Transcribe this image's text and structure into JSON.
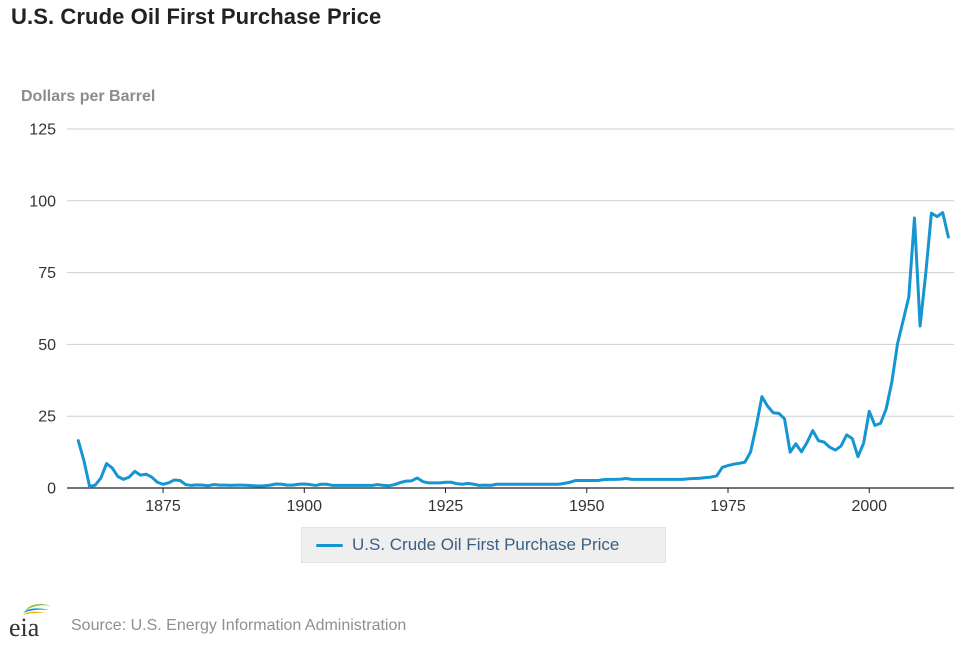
{
  "colors": {
    "series": "#1596d2",
    "grid": "#cfcfcf",
    "axis": "#222222",
    "legend_bg": "#efefef"
  },
  "logo": {
    "text": "eia",
    "icon": "eia-logo-icon"
  },
  "footer": {
    "source": "Source: U.S. Energy Information Administration"
  },
  "chart_data": {
    "type": "line",
    "title": "U.S. Crude Oil First Purchase Price",
    "ylabel": "Dollars per Barrel",
    "xlabel": "",
    "xlim": [
      1858,
      2015
    ],
    "ylim": [
      0,
      125
    ],
    "x_ticks": [
      1875,
      1900,
      1925,
      1950,
      1975,
      2000
    ],
    "y_ticks": [
      0,
      25,
      50,
      75,
      100,
      125
    ],
    "grid": "horizontal",
    "legend_position": "bottom",
    "series": [
      {
        "name": "U.S. Crude Oil First Purchase Price",
        "x": [
          1860,
          1861,
          1862,
          1863,
          1864,
          1865,
          1866,
          1867,
          1868,
          1869,
          1870,
          1871,
          1872,
          1873,
          1874,
          1875,
          1876,
          1877,
          1878,
          1879,
          1880,
          1881,
          1882,
          1883,
          1884,
          1885,
          1886,
          1887,
          1888,
          1889,
          1890,
          1891,
          1892,
          1893,
          1894,
          1895,
          1896,
          1897,
          1898,
          1899,
          1900,
          1901,
          1902,
          1903,
          1904,
          1905,
          1906,
          1907,
          1908,
          1909,
          1910,
          1911,
          1912,
          1913,
          1914,
          1915,
          1916,
          1917,
          1918,
          1919,
          1920,
          1921,
          1922,
          1923,
          1924,
          1925,
          1926,
          1927,
          1928,
          1929,
          1930,
          1931,
          1932,
          1933,
          1934,
          1935,
          1936,
          1937,
          1938,
          1939,
          1940,
          1941,
          1942,
          1943,
          1944,
          1945,
          1946,
          1947,
          1948,
          1949,
          1950,
          1951,
          1952,
          1953,
          1954,
          1955,
          1956,
          1957,
          1958,
          1959,
          1960,
          1961,
          1962,
          1963,
          1964,
          1965,
          1966,
          1967,
          1968,
          1969,
          1970,
          1971,
          1972,
          1973,
          1974,
          1975,
          1976,
          1977,
          1978,
          1979,
          1980,
          1981,
          1982,
          1983,
          1984,
          1985,
          1986,
          1987,
          1988,
          1989,
          1990,
          1991,
          1992,
          1993,
          1994,
          1995,
          1996,
          1997,
          1998,
          1999,
          2000,
          2001,
          2002,
          2003,
          2004,
          2005,
          2006,
          2007,
          2008,
          2009,
          2010,
          2011,
          2012,
          2013,
          2014
        ],
        "y": [
          16.5,
          9.5,
          0.5,
          1.0,
          3.5,
          8.5,
          7.0,
          4.0,
          3.0,
          3.8,
          5.8,
          4.5,
          4.8,
          3.8,
          2.0,
          1.3,
          1.8,
          2.8,
          2.6,
          1.2,
          0.9,
          1.1,
          1.0,
          0.8,
          1.2,
          1.0,
          1.0,
          0.9,
          1.0,
          1.0,
          0.9,
          0.8,
          0.7,
          0.8,
          1.0,
          1.4,
          1.3,
          1.0,
          1.0,
          1.3,
          1.4,
          1.2,
          0.9,
          1.3,
          1.3,
          0.9,
          0.9,
          0.9,
          0.9,
          0.9,
          0.9,
          0.9,
          0.9,
          1.2,
          0.9,
          0.8,
          1.2,
          1.9,
          2.4,
          2.5,
          3.5,
          2.2,
          1.8,
          1.8,
          1.8,
          2.0,
          2.0,
          1.5,
          1.3,
          1.6,
          1.3,
          0.9,
          1.0,
          0.9,
          1.3,
          1.3,
          1.3,
          1.3,
          1.3,
          1.3,
          1.3,
          1.3,
          1.3,
          1.3,
          1.3,
          1.3,
          1.6,
          2.0,
          2.6,
          2.6,
          2.6,
          2.6,
          2.6,
          2.9,
          3.0,
          3.0,
          3.1,
          3.3,
          3.0,
          3.0,
          3.0,
          3.0,
          3.0,
          3.0,
          3.0,
          3.0,
          3.0,
          3.0,
          3.2,
          3.3,
          3.4,
          3.6,
          3.8,
          4.2,
          7.2,
          7.8,
          8.3,
          8.6,
          9.0,
          12.6,
          21.6,
          31.8,
          28.5,
          26.2,
          26.0,
          24.1,
          12.5,
          15.4,
          12.6,
          15.9,
          20.0,
          16.5,
          16.0,
          14.2,
          13.2,
          14.6,
          18.5,
          17.2,
          10.9,
          15.6,
          26.7,
          21.8,
          22.5,
          27.6,
          36.9,
          50.2,
          58.3,
          66.5,
          94.0,
          56.4,
          74.7,
          95.7,
          94.5,
          95.9,
          87.4
        ]
      }
    ]
  }
}
